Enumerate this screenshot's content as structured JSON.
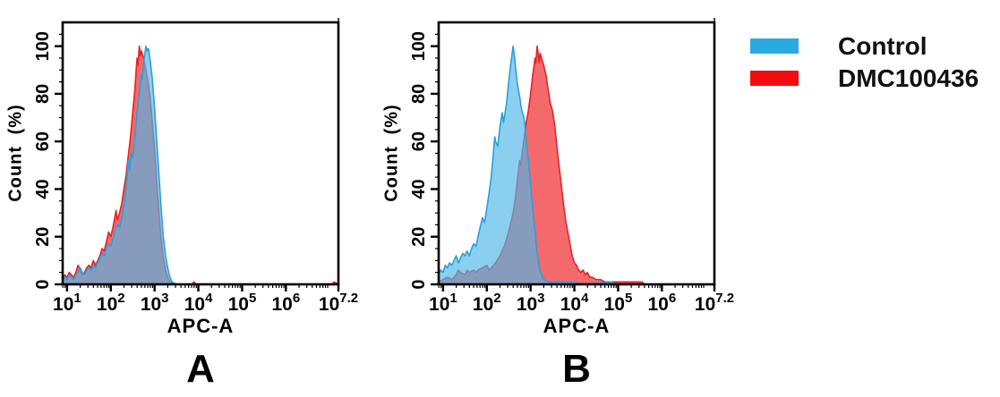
{
  "legend": {
    "items": [
      {
        "label": "Control",
        "color": "#29ABE2"
      },
      {
        "label": "DMC100436",
        "color": "#F40D10"
      }
    ]
  },
  "chart_data": [
    {
      "type": "area",
      "panel_label": "A",
      "xlabel": "APC-A",
      "ylabel": "Count (%)",
      "x_scale": "log10",
      "x_range_log": [
        0.9,
        7.2
      ],
      "x_tick_base": "10",
      "x_major_ticks": [
        {
          "log": 1,
          "exp": "1"
        },
        {
          "log": 2,
          "exp": "2"
        },
        {
          "log": 3,
          "exp": "3"
        },
        {
          "log": 4,
          "exp": "4"
        },
        {
          "log": 5,
          "exp": "5"
        },
        {
          "log": 6,
          "exp": "6"
        },
        {
          "log": 7.2,
          "exp": "7.2"
        }
      ],
      "y_ticks": [
        0,
        20,
        40,
        60,
        80,
        100
      ],
      "ylim": [
        0,
        110
      ],
      "grid": false,
      "legend_position": "outside-top-right",
      "series": [
        {
          "name": "DMC100436",
          "fill": "#F4696B",
          "fill_opacity": 1,
          "stroke": "#E42528",
          "points": [
            [
              0.9,
              2
            ],
            [
              0.95,
              4
            ],
            [
              1.0,
              3
            ],
            [
              1.05,
              5
            ],
            [
              1.1,
              4
            ],
            [
              1.15,
              3
            ],
            [
              1.2,
              5
            ],
            [
              1.25,
              8
            ],
            [
              1.3,
              6
            ],
            [
              1.35,
              4
            ],
            [
              1.4,
              5
            ],
            [
              1.45,
              7
            ],
            [
              1.5,
              8
            ],
            [
              1.55,
              7
            ],
            [
              1.6,
              10
            ],
            [
              1.65,
              8
            ],
            [
              1.7,
              10
            ],
            [
              1.75,
              12
            ],
            [
              1.8,
              15
            ],
            [
              1.85,
              14
            ],
            [
              1.9,
              18
            ],
            [
              1.95,
              22
            ],
            [
              2.0,
              20
            ],
            [
              2.05,
              24
            ],
            [
              2.1,
              29
            ],
            [
              2.12,
              31
            ],
            [
              2.15,
              27
            ],
            [
              2.2,
              30
            ],
            [
              2.25,
              34
            ],
            [
              2.3,
              40
            ],
            [
              2.35,
              46
            ],
            [
              2.4,
              54
            ],
            [
              2.45,
              62
            ],
            [
              2.5,
              72
            ],
            [
              2.55,
              82
            ],
            [
              2.58,
              90
            ],
            [
              2.6,
              95
            ],
            [
              2.62,
              92
            ],
            [
              2.65,
              100
            ],
            [
              2.68,
              96
            ],
            [
              2.7,
              98
            ],
            [
              2.75,
              95
            ],
            [
              2.8,
              90
            ],
            [
              2.85,
              85
            ],
            [
              2.9,
              78
            ],
            [
              2.95,
              68
            ],
            [
              3.0,
              56
            ],
            [
              3.05,
              43
            ],
            [
              3.1,
              30
            ],
            [
              3.15,
              19
            ],
            [
              3.2,
              11
            ],
            [
              3.25,
              6
            ],
            [
              3.3,
              3
            ],
            [
              3.35,
              1
            ],
            [
              3.45,
              0
            ],
            [
              3.85,
              0
            ],
            [
              3.9,
              1
            ],
            [
              3.95,
              0
            ],
            [
              7.05,
              0
            ],
            [
              7.1,
              1
            ],
            [
              7.2,
              0
            ]
          ]
        },
        {
          "name": "Control",
          "fill": "#4FB6E8",
          "fill_opacity": 0.66,
          "stroke": "#2D9FD8",
          "points": [
            [
              0.9,
              2
            ],
            [
              0.95,
              3
            ],
            [
              1.0,
              2
            ],
            [
              1.05,
              4
            ],
            [
              1.1,
              3
            ],
            [
              1.15,
              2
            ],
            [
              1.2,
              4
            ],
            [
              1.25,
              5
            ],
            [
              1.3,
              7
            ],
            [
              1.35,
              5
            ],
            [
              1.4,
              4
            ],
            [
              1.45,
              6
            ],
            [
              1.5,
              7
            ],
            [
              1.55,
              6
            ],
            [
              1.6,
              8
            ],
            [
              1.65,
              7
            ],
            [
              1.7,
              9
            ],
            [
              1.75,
              11
            ],
            [
              1.8,
              13
            ],
            [
              1.85,
              12
            ],
            [
              1.9,
              15
            ],
            [
              1.95,
              17
            ],
            [
              2.0,
              16
            ],
            [
              2.05,
              19
            ],
            [
              2.1,
              23
            ],
            [
              2.15,
              25
            ],
            [
              2.2,
              24
            ],
            [
              2.25,
              28
            ],
            [
              2.3,
              33
            ],
            [
              2.35,
              40
            ],
            [
              2.4,
              52
            ],
            [
              2.43,
              48
            ],
            [
              2.46,
              55
            ],
            [
              2.5,
              53
            ],
            [
              2.55,
              62
            ],
            [
              2.6,
              72
            ],
            [
              2.65,
              80
            ],
            [
              2.7,
              88
            ],
            [
              2.72,
              86
            ],
            [
              2.75,
              93
            ],
            [
              2.78,
              97
            ],
            [
              2.8,
              100
            ],
            [
              2.83,
              98
            ],
            [
              2.86,
              99
            ],
            [
              2.9,
              94
            ],
            [
              2.95,
              86
            ],
            [
              3.0,
              74
            ],
            [
              3.05,
              60
            ],
            [
              3.1,
              46
            ],
            [
              3.15,
              32
            ],
            [
              3.2,
              20
            ],
            [
              3.25,
              12
            ],
            [
              3.3,
              7
            ],
            [
              3.35,
              3
            ],
            [
              3.4,
              1
            ],
            [
              3.5,
              0
            ],
            [
              7.2,
              0
            ]
          ]
        }
      ]
    },
    {
      "type": "area",
      "panel_label": "B",
      "xlabel": "APC-A",
      "ylabel": "Count (%)",
      "x_scale": "log10",
      "x_range_log": [
        0.9,
        7.2
      ],
      "x_tick_base": "10",
      "x_major_ticks": [
        {
          "log": 1,
          "exp": "1"
        },
        {
          "log": 2,
          "exp": "2"
        },
        {
          "log": 3,
          "exp": "3"
        },
        {
          "log": 4,
          "exp": "4"
        },
        {
          "log": 5,
          "exp": "5"
        },
        {
          "log": 6,
          "exp": "6"
        },
        {
          "log": 7.2,
          "exp": "7.2"
        }
      ],
      "y_ticks": [
        0,
        20,
        40,
        60,
        80,
        100
      ],
      "ylim": [
        0,
        110
      ],
      "grid": false,
      "legend_position": "outside-top-right",
      "series": [
        {
          "name": "DMC100436",
          "fill": "#F4696B",
          "fill_opacity": 1,
          "stroke": "#E42528",
          "points": [
            [
              0.9,
              1
            ],
            [
              1.0,
              2
            ],
            [
              1.1,
              3
            ],
            [
              1.2,
              2
            ],
            [
              1.3,
              4
            ],
            [
              1.35,
              6
            ],
            [
              1.4,
              5
            ],
            [
              1.5,
              4
            ],
            [
              1.55,
              6
            ],
            [
              1.6,
              5
            ],
            [
              1.7,
              6
            ],
            [
              1.75,
              5
            ],
            [
              1.8,
              6
            ],
            [
              1.9,
              7
            ],
            [
              2.0,
              8
            ],
            [
              2.05,
              6
            ],
            [
              2.1,
              7
            ],
            [
              2.2,
              9
            ],
            [
              2.3,
              12
            ],
            [
              2.4,
              16
            ],
            [
              2.45,
              19
            ],
            [
              2.5,
              22
            ],
            [
              2.55,
              26
            ],
            [
              2.6,
              30
            ],
            [
              2.65,
              36
            ],
            [
              2.7,
              44
            ],
            [
              2.75,
              52
            ],
            [
              2.78,
              50
            ],
            [
              2.8,
              54
            ],
            [
              2.85,
              61
            ],
            [
              2.9,
              68
            ],
            [
              2.95,
              73
            ],
            [
              3.0,
              80
            ],
            [
              3.05,
              88
            ],
            [
              3.08,
              92
            ],
            [
              3.1,
              95
            ],
            [
              3.12,
              93
            ],
            [
              3.15,
              100
            ],
            [
              3.18,
              96
            ],
            [
              3.2,
              93
            ],
            [
              3.22,
              97
            ],
            [
              3.25,
              95
            ],
            [
              3.3,
              92
            ],
            [
              3.35,
              88
            ],
            [
              3.4,
              82
            ],
            [
              3.45,
              76
            ],
            [
              3.5,
              73
            ],
            [
              3.55,
              67
            ],
            [
              3.6,
              58
            ],
            [
              3.65,
              50
            ],
            [
              3.7,
              42
            ],
            [
              3.75,
              34
            ],
            [
              3.8,
              27
            ],
            [
              3.85,
              22
            ],
            [
              3.9,
              17
            ],
            [
              3.95,
              12
            ],
            [
              4.0,
              9
            ],
            [
              4.05,
              8
            ],
            [
              4.1,
              6
            ],
            [
              4.15,
              5
            ],
            [
              4.2,
              6
            ],
            [
              4.25,
              4
            ],
            [
              4.3,
              5
            ],
            [
              4.35,
              3
            ],
            [
              4.4,
              3
            ],
            [
              4.5,
              2
            ],
            [
              4.6,
              2
            ],
            [
              4.7,
              1
            ],
            [
              4.8,
              1
            ],
            [
              5.0,
              1
            ],
            [
              5.2,
              1
            ],
            [
              5.4,
              1
            ],
            [
              5.55,
              1
            ],
            [
              5.6,
              0
            ],
            [
              7.2,
              0
            ]
          ]
        },
        {
          "name": "Control",
          "fill": "#4FB6E8",
          "fill_opacity": 0.66,
          "stroke": "#2D9FD8",
          "points": [
            [
              0.9,
              4
            ],
            [
              0.95,
              6
            ],
            [
              1.0,
              5
            ],
            [
              1.05,
              8
            ],
            [
              1.1,
              7
            ],
            [
              1.15,
              9
            ],
            [
              1.2,
              8
            ],
            [
              1.25,
              10
            ],
            [
              1.3,
              12
            ],
            [
              1.35,
              9
            ],
            [
              1.4,
              11
            ],
            [
              1.45,
              13
            ],
            [
              1.5,
              12
            ],
            [
              1.55,
              14
            ],
            [
              1.6,
              12
            ],
            [
              1.65,
              15
            ],
            [
              1.7,
              17
            ],
            [
              1.75,
              16
            ],
            [
              1.8,
              20
            ],
            [
              1.85,
              24
            ],
            [
              1.9,
              28
            ],
            [
              1.95,
              26
            ],
            [
              2.0,
              32
            ],
            [
              2.05,
              38
            ],
            [
              2.1,
              45
            ],
            [
              2.15,
              55
            ],
            [
              2.18,
              62
            ],
            [
              2.2,
              60
            ],
            [
              2.25,
              58
            ],
            [
              2.3,
              66
            ],
            [
              2.35,
              72
            ],
            [
              2.38,
              68
            ],
            [
              2.4,
              70
            ],
            [
              2.45,
              76
            ],
            [
              2.5,
              85
            ],
            [
              2.55,
              93
            ],
            [
              2.58,
              97
            ],
            [
              2.6,
              100
            ],
            [
              2.63,
              96
            ],
            [
              2.65,
              92
            ],
            [
              2.7,
              84
            ],
            [
              2.75,
              79
            ],
            [
              2.78,
              75
            ],
            [
              2.8,
              73
            ],
            [
              2.85,
              70
            ],
            [
              2.88,
              65
            ],
            [
              2.9,
              60
            ],
            [
              2.95,
              52
            ],
            [
              3.0,
              42
            ],
            [
              3.05,
              32
            ],
            [
              3.1,
              22
            ],
            [
              3.15,
              13
            ],
            [
              3.2,
              7
            ],
            [
              3.25,
              4
            ],
            [
              3.3,
              2
            ],
            [
              3.4,
              1
            ],
            [
              3.6,
              1
            ],
            [
              3.8,
              1
            ],
            [
              4.0,
              1
            ],
            [
              4.15,
              0
            ],
            [
              4.85,
              1
            ],
            [
              4.95,
              0
            ],
            [
              7.2,
              0
            ]
          ]
        }
      ]
    }
  ]
}
